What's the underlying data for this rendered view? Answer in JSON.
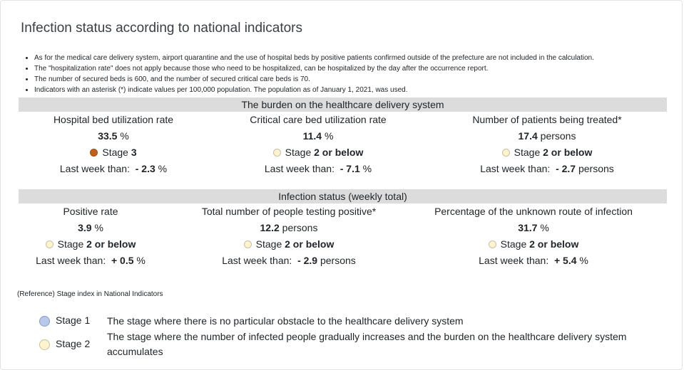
{
  "title": "Infection status according to national indicators",
  "notes": [
    "As for the medical care delivery system, airport quarantine and the use of hospital beds by positive patients confirmed outside of the prefecture are not included in the calculation.",
    "The \"hospitalization rate\" does not apply because those who need to be hospitalized, can be hospitalized by the day after the occurrence report.",
    "The number of secured beds is 600, and the number of secured critical care beds is 70.",
    "Indicators with an asterisk (*) indicate values per 100,000 population. The population as of January 1, 2021, was used."
  ],
  "sections": [
    {
      "heading": "The burden on the healthcare delivery system",
      "indicators": [
        {
          "label": "Hospital bed utilization rate",
          "value": "33.5",
          "unit": "%",
          "stage_prefix": "Stage",
          "stage": "3",
          "stage_color": "#c0601a",
          "diff_label": "Last week than:",
          "diff": "- 2.3",
          "diff_unit": "%"
        },
        {
          "label": "Critical care bed utilization rate",
          "value": "11.4",
          "unit": "%",
          "stage_prefix": "Stage",
          "stage": "2 or below",
          "stage_color": "#fff4cf",
          "diff_label": "Last week than:",
          "diff": "- 7.1",
          "diff_unit": "%"
        },
        {
          "label": "Number of patients being treated*",
          "value": "17.4",
          "unit": "persons",
          "stage_prefix": "Stage",
          "stage": "2 or below",
          "stage_color": "#fff4cf",
          "diff_label": "Last week than:",
          "diff": "- 2.7",
          "diff_unit": "persons"
        }
      ]
    },
    {
      "heading": "Infection status (weekly total)",
      "indicators": [
        {
          "label": "Positive rate",
          "value": "3.9",
          "unit": "%",
          "stage_prefix": "Stage",
          "stage": "2 or below",
          "stage_color": "#fff4cf",
          "diff_label": "Last week than:",
          "diff": "+ 0.5",
          "diff_unit": "%"
        },
        {
          "label": "Total number of people testing positive*",
          "value": "12.2",
          "unit": "persons",
          "stage_prefix": "Stage",
          "stage": "2 or below",
          "stage_color": "#fff4cf",
          "diff_label": "Last week than:",
          "diff": "- 2.9",
          "diff_unit": "persons"
        },
        {
          "label": "Percentage of the unknown route of infection",
          "value": "31.7",
          "unit": "%",
          "stage_prefix": "Stage",
          "stage": "2 or below",
          "stage_color": "#fff4cf",
          "diff_label": "Last week than:",
          "diff": "+ 5.4",
          "diff_unit": "%"
        }
      ]
    }
  ],
  "reference": {
    "heading": "(Reference) Stage index in National Indicators",
    "stages": [
      {
        "name": "Stage 1",
        "color": "#b8c8e8",
        "description": "The stage where there is no particular obstacle to the healthcare delivery system"
      },
      {
        "name": "Stage 2",
        "color": "#fff4cf",
        "description": "The stage where the number of infected people gradually increases and the burden on the healthcare delivery system accumulates"
      }
    ]
  }
}
